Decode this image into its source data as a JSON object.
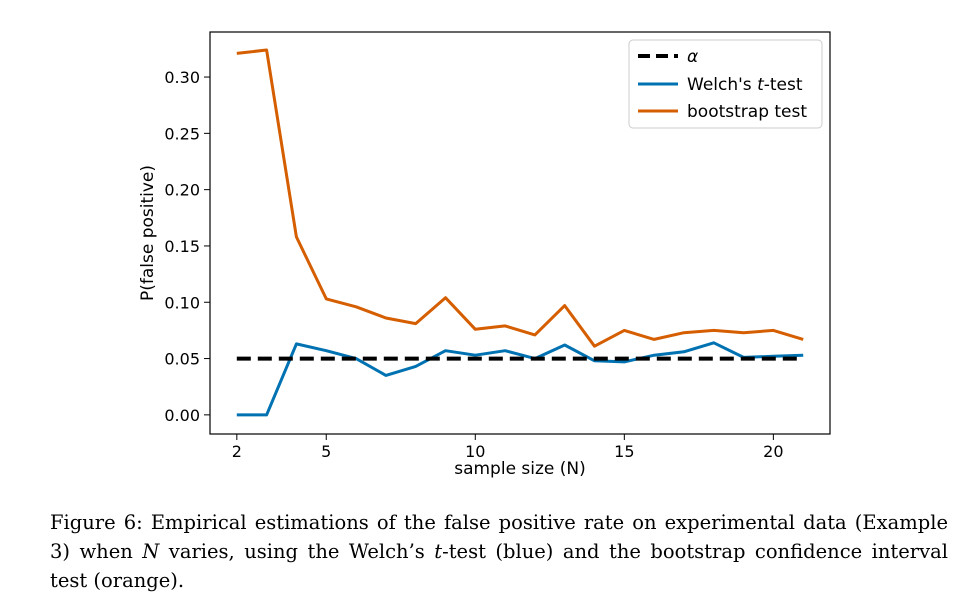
{
  "chart_data": {
    "type": "line",
    "xlabel": "sample size (N)",
    "ylabel": "P(false positive)",
    "xlim": [
      1.1,
      21.9
    ],
    "ylim": [
      -0.017,
      0.34
    ],
    "xticks": [
      2,
      5,
      10,
      15,
      20
    ],
    "yticks": [
      "0.00",
      "0.05",
      "0.10",
      "0.15",
      "0.20",
      "0.25",
      "0.30"
    ],
    "grid": false,
    "legend_position": "top-right",
    "x": [
      2,
      3,
      4,
      5,
      6,
      7,
      8,
      9,
      10,
      11,
      12,
      13,
      14,
      15,
      16,
      17,
      18,
      19,
      20,
      21
    ],
    "series": [
      {
        "name": "α",
        "color": "#000000",
        "style": "dashed",
        "values": [
          0.05,
          0.05,
          0.05,
          0.05,
          0.05,
          0.05,
          0.05,
          0.05,
          0.05,
          0.05,
          0.05,
          0.05,
          0.05,
          0.05,
          0.05,
          0.05,
          0.05,
          0.05,
          0.05,
          0.05
        ]
      },
      {
        "name": "Welch's t-test",
        "name_parts": [
          "Welch's ",
          "t",
          "-test"
        ],
        "color": "#0072B2",
        "style": "solid",
        "values": [
          0.0,
          0.0,
          0.063,
          0.057,
          0.05,
          0.035,
          0.043,
          0.057,
          0.053,
          0.057,
          0.05,
          0.062,
          0.048,
          0.047,
          0.053,
          0.056,
          0.064,
          0.051,
          0.052,
          0.053
        ]
      },
      {
        "name": "bootstrap test",
        "color": "#D55E00",
        "style": "solid",
        "values": [
          0.321,
          0.324,
          0.158,
          0.103,
          0.096,
          0.086,
          0.081,
          0.104,
          0.076,
          0.079,
          0.071,
          0.097,
          0.061,
          0.075,
          0.067,
          0.073,
          0.075,
          0.073,
          0.075,
          0.067
        ]
      }
    ]
  },
  "caption": {
    "label": "Figure 6:",
    "part1": " Empirical estimations of the false positive rate on experimental data (Example 3) when ",
    "var_n": "N",
    "part2": " varies, using the Welch’s ",
    "var_t": "t",
    "part3": "-test (blue) and the bootstrap confidence interval test (orange)."
  }
}
